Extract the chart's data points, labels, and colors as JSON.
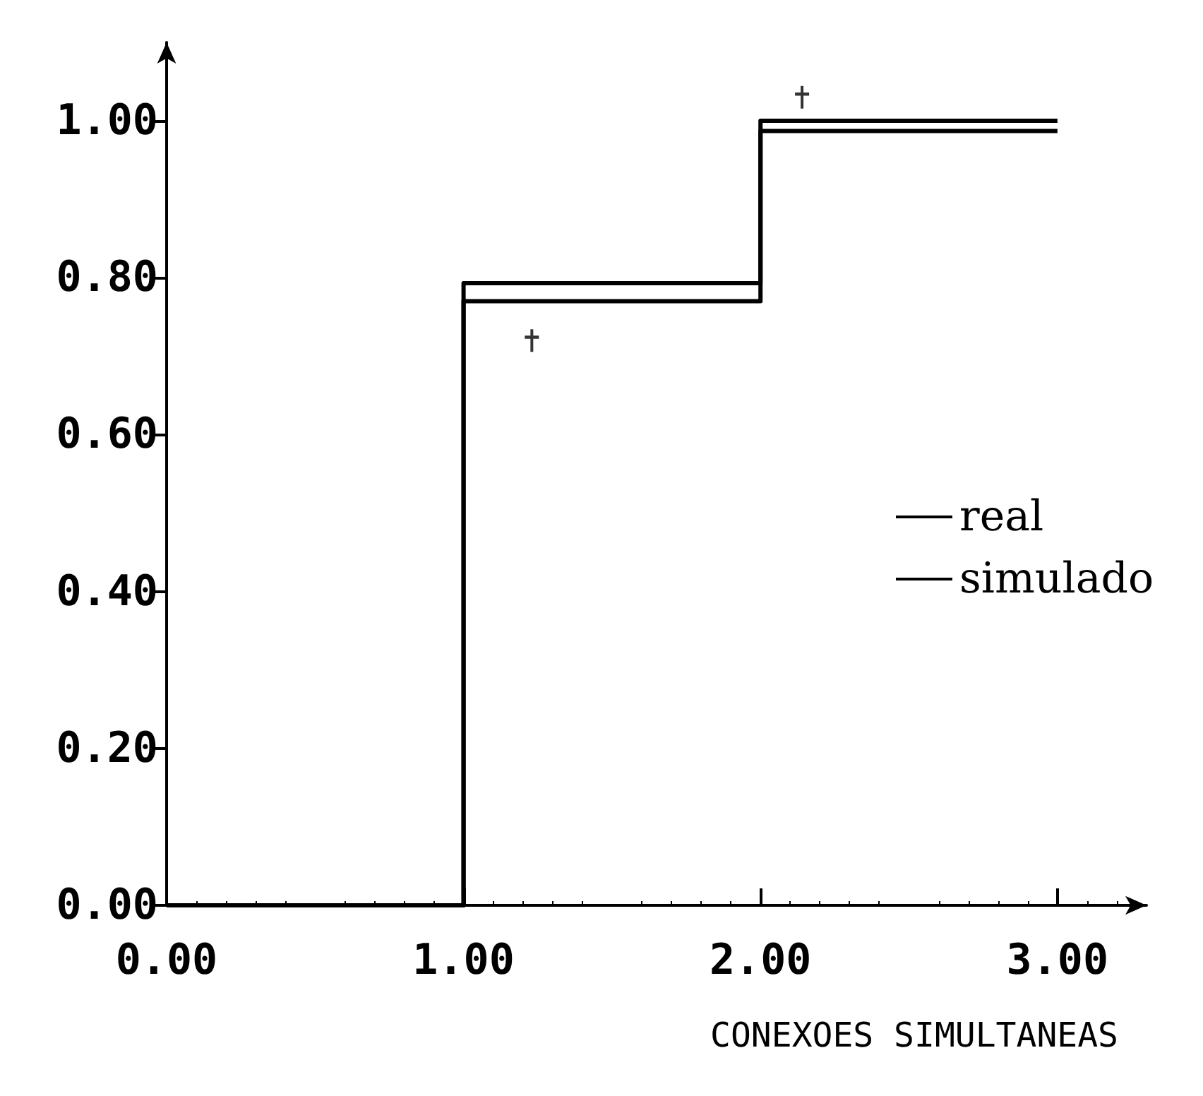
{
  "chart_data": {
    "type": "step",
    "xlabel": "CONEXOES SIMULTANEAS",
    "xlim": [
      0,
      3.3
    ],
    "xticks": [
      {
        "value": 0,
        "label": "0.00"
      },
      {
        "value": 1,
        "label": "1.00"
      },
      {
        "value": 2,
        "label": "2.00"
      },
      {
        "value": 3,
        "label": "3.00"
      }
    ],
    "ylim": [
      0,
      1.1
    ],
    "yticks": [
      {
        "value": 0,
        "label": "0.00"
      },
      {
        "value": 0.2,
        "label": "0.20"
      },
      {
        "value": 0.4,
        "label": "0.40"
      },
      {
        "value": 0.6,
        "label": "0.60"
      },
      {
        "value": 0.8,
        "label": "0.80"
      },
      {
        "value": 1,
        "label": "1.00"
      }
    ],
    "grid": false,
    "legend": "right",
    "marker": "none",
    "series": [
      {
        "name": "real",
        "color": "#000000",
        "x": [
          0,
          1,
          2,
          3
        ],
        "values": [
          0,
          0.77,
          0.987,
          0.987
        ]
      },
      {
        "name": "simulado",
        "color": "#000000",
        "x": [
          0,
          1,
          2,
          3
        ],
        "values": [
          0,
          0.793,
          1.0,
          1.0
        ]
      },
      {
        "type": "scatter",
        "marker": "cross",
        "color": "#000000",
        "x": [
          1.23,
          2.14
        ],
        "values": [
          0.72,
          1.03
        ]
      }
    ]
  }
}
